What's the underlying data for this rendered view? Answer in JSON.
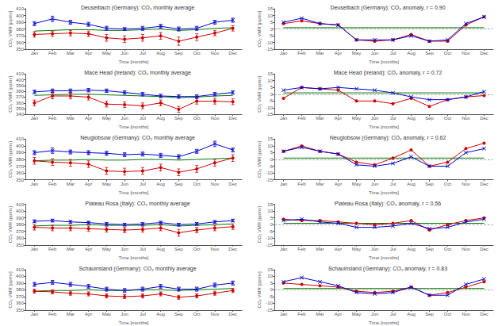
{
  "chart_data": [
    {
      "type": "line",
      "title": "Deuselbach (Germany): CO₂ monthly average",
      "x_label": "Time [months]",
      "y_label": "CO₂ VMR [ppmv]",
      "categories": [
        "Jan",
        "Feb",
        "Mar",
        "Apr",
        "May",
        "Jun",
        "Jul",
        "Aug",
        "Sep",
        "Oct",
        "Nov",
        "Dec"
      ],
      "ylim": [
        350,
        410
      ],
      "yticks": [
        350,
        360,
        370,
        380,
        390,
        400,
        410
      ],
      "grid": false,
      "series": [
        {
          "color": "#0000cc",
          "marker": "x",
          "values": [
            388,
            395,
            390,
            387,
            381,
            380,
            381,
            384,
            380,
            381,
            390,
            393
          ],
          "errors": [
            3,
            4,
            3,
            3,
            3,
            2,
            3,
            3,
            3,
            3,
            3,
            3
          ]
        },
        {
          "color": "#cc0000",
          "marker": "circle",
          "values": [
            372,
            373,
            374,
            373,
            367,
            365,
            367,
            370,
            362,
            368,
            374,
            381
          ],
          "errors": [
            4,
            4,
            4,
            4,
            5,
            5,
            5,
            5,
            6,
            5,
            4,
            4
          ]
        },
        {
          "color": "#007700",
          "marker": "none",
          "values": [
            377,
            378,
            379,
            379,
            378,
            378,
            379,
            380,
            378,
            379,
            381,
            382
          ]
        }
      ]
    },
    {
      "type": "line",
      "title": "Deuselbach (Germany): CO₂ anomaly, r = 0.90",
      "x_label": "Time [months]",
      "y_label": "CO₂ VMR [ppmv]",
      "categories": [
        "Jan",
        "Feb",
        "Mar",
        "Apr",
        "May",
        "Jun",
        "Jul",
        "Aug",
        "Sep",
        "Oct",
        "Nov",
        "Dec"
      ],
      "ylim": [
        -15,
        15
      ],
      "yticks": [
        -15,
        -10,
        -5,
        0,
        5,
        10,
        15
      ],
      "grid": false,
      "reference_line": {
        "value": 0,
        "color": "#999999",
        "line_style": "dashed"
      },
      "series": [
        {
          "color": "#0000cc",
          "marker": "x",
          "values": [
            5,
            8,
            4,
            3,
            -8,
            -8,
            -8,
            -5,
            -9,
            -8,
            4,
            9
          ]
        },
        {
          "color": "#cc0000",
          "marker": "circle",
          "values": [
            4,
            6,
            4,
            3,
            -8,
            -9,
            -8,
            -4,
            -9,
            -9,
            3,
            9
          ]
        },
        {
          "color": "#007700",
          "marker": "none",
          "values": [
            1,
            1,
            1,
            1,
            1,
            1,
            1,
            1,
            1,
            1,
            1,
            1
          ]
        }
      ]
    },
    {
      "type": "line",
      "title": "Mace Head (Ireland): CO₂ monthly average",
      "x_label": "Time [months]",
      "y_label": "CO₂ VMR [ppmv]",
      "categories": [
        "Jan",
        "Feb",
        "Mar",
        "Apr",
        "May",
        "Jun",
        "Jul",
        "Aug",
        "Sep",
        "Oct",
        "Nov",
        "Dec"
      ],
      "ylim": [
        340,
        410
      ],
      "yticks": [
        340,
        350,
        360,
        370,
        380,
        390,
        400,
        410
      ],
      "grid": false,
      "series": [
        {
          "color": "#0000cc",
          "marker": "x",
          "values": [
            379,
            381,
            381,
            382,
            381,
            378,
            375,
            372,
            371,
            371,
            375,
            378
          ],
          "errors": [
            3,
            3,
            3,
            3,
            3,
            3,
            3,
            3,
            3,
            3,
            3,
            3
          ]
        },
        {
          "color": "#cc0000",
          "marker": "circle",
          "values": [
            360,
            372,
            372,
            370,
            358,
            357,
            355,
            360,
            349,
            363,
            363,
            362
          ],
          "errors": [
            5,
            5,
            5,
            5,
            5,
            5,
            5,
            5,
            5,
            5,
            5,
            5
          ]
        },
        {
          "color": "#007700",
          "marker": "none",
          "values": [
            373,
            374,
            375,
            375,
            374,
            373,
            372,
            371,
            369,
            370,
            372,
            373
          ]
        }
      ]
    },
    {
      "type": "line",
      "title": "Mace Head (Ireland): CO₂ anomaly, r = 0.72",
      "x_label": "Time [months]",
      "y_label": "CO₂ VMR [ppmv]",
      "categories": [
        "Jan",
        "Feb",
        "Mar",
        "Apr",
        "May",
        "Jun",
        "Jul",
        "Aug",
        "Sep",
        "Oct",
        "Nov",
        "Dec"
      ],
      "ylim": [
        -15,
        15
      ],
      "yticks": [
        -15,
        -10,
        -5,
        0,
        5,
        10,
        15
      ],
      "grid": false,
      "reference_line": {
        "value": 0,
        "color": "#999999",
        "line_style": "dashed"
      },
      "series": [
        {
          "color": "#0000cc",
          "marker": "x",
          "values": [
            3,
            5,
            4,
            5,
            4,
            3,
            1,
            -2,
            -4,
            -4,
            -2,
            2
          ]
        },
        {
          "color": "#cc0000",
          "marker": "circle",
          "values": [
            -3,
            5,
            4,
            3,
            -5,
            -5,
            -7,
            -3,
            -9,
            -4,
            -2,
            -1
          ]
        },
        {
          "color": "#007700",
          "marker": "none",
          "values": [
            1,
            1,
            1,
            1,
            1,
            1,
            1,
            1,
            1,
            1,
            1,
            1
          ]
        }
      ]
    },
    {
      "type": "line",
      "title": "Neuglobsow (Germany): CO₂ monthly average",
      "x_label": "Time [months]",
      "y_label": "CO₂ VMR [ppmv]",
      "categories": [
        "Jan",
        "Feb",
        "Mar",
        "Apr",
        "May",
        "Jun",
        "Jul",
        "Aug",
        "Sep",
        "Oct",
        "Nov",
        "Dec"
      ],
      "ylim": [
        350,
        410
      ],
      "yticks": [
        350,
        360,
        370,
        380,
        390,
        400,
        410
      ],
      "grid": false,
      "series": [
        {
          "color": "#0000cc",
          "marker": "x",
          "values": [
            390,
            393,
            391,
            390,
            389,
            387,
            388,
            386,
            384,
            392,
            403,
            394
          ],
          "errors": [
            3,
            4,
            3,
            3,
            3,
            3,
            3,
            3,
            3,
            3,
            4,
            3
          ]
        },
        {
          "color": "#cc0000",
          "marker": "circle",
          "values": [
            378,
            376,
            375,
            373,
            363,
            362,
            363,
            368,
            361,
            366,
            375,
            382
          ],
          "errors": [
            5,
            5,
            5,
            5,
            5,
            5,
            5,
            5,
            5,
            5,
            5,
            5
          ]
        },
        {
          "color": "#007700",
          "marker": "none",
          "values": [
            378,
            379,
            379,
            380,
            379,
            379,
            380,
            380,
            379,
            380,
            381,
            382
          ]
        }
      ]
    },
    {
      "type": "line",
      "title": "Neuglobsow (Germany): CO₂ anomaly, r = 0.62",
      "x_label": "Time [months]",
      "y_label": "CO₂ VMR [ppmv]",
      "categories": [
        "Jan",
        "Feb",
        "Mar",
        "Apr",
        "May",
        "Jun",
        "Jul",
        "Aug",
        "Sep",
        "Oct",
        "Nov",
        "Dec"
      ],
      "ylim": [
        -15,
        15
      ],
      "yticks": [
        -15,
        -10,
        -5,
        0,
        5,
        10,
        15
      ],
      "grid": false,
      "reference_line": {
        "value": 0,
        "color": "#999999",
        "line_style": "dashed"
      },
      "series": [
        {
          "color": "#0000cc",
          "marker": "x",
          "values": [
            6,
            9,
            6,
            4,
            -4,
            -5,
            -3,
            2,
            -5,
            -5,
            5,
            8
          ]
        },
        {
          "color": "#cc0000",
          "marker": "circle",
          "values": [
            6,
            10,
            6,
            4,
            -2,
            -4,
            1,
            7,
            -5,
            -2,
            8,
            12
          ]
        },
        {
          "color": "#007700",
          "marker": "none",
          "values": [
            1,
            1,
            1,
            1,
            1,
            1,
            1,
            1,
            1,
            1,
            1,
            1
          ]
        }
      ]
    },
    {
      "type": "line",
      "title": "Plateau Rosa (Italy): CO₂ monthly average",
      "x_label": "Time [months]",
      "y_label": "CO₂ VMR [ppmv]",
      "categories": [
        "Jan",
        "Feb",
        "Mar",
        "Apr",
        "May",
        "Jun",
        "Jul",
        "Aug",
        "Sep",
        "Oct",
        "Nov",
        "Dec"
      ],
      "ylim": [
        350,
        410
      ],
      "yticks": [
        350,
        360,
        370,
        380,
        390,
        400,
        410
      ],
      "grid": false,
      "series": [
        {
          "color": "#0000cc",
          "marker": "x",
          "values": [
            385,
            386,
            384,
            383,
            381,
            380,
            381,
            383,
            380,
            381,
            384,
            386
          ],
          "errors": [
            2,
            2,
            2,
            2,
            2,
            2,
            2,
            2,
            2,
            2,
            2,
            2
          ]
        },
        {
          "color": "#cc0000",
          "marker": "circle",
          "values": [
            376,
            375,
            375,
            374,
            373,
            372,
            373,
            375,
            368,
            372,
            375,
            377
          ],
          "errors": [
            4,
            4,
            4,
            4,
            4,
            4,
            4,
            4,
            5,
            4,
            4,
            4
          ]
        },
        {
          "color": "#007700",
          "marker": "none",
          "values": [
            378,
            379,
            379,
            380,
            379,
            379,
            379,
            380,
            378,
            379,
            380,
            381
          ]
        }
      ]
    },
    {
      "type": "line",
      "title": "Plateau Rosa (Italy): CO₂ anomaly, r = 0.56",
      "x_label": "Time [months]",
      "y_label": "CO₂ VMR [ppmv]",
      "categories": [
        "Jan",
        "Feb",
        "Mar",
        "Apr",
        "May",
        "Jun",
        "Jul",
        "Aug",
        "Sep",
        "Oct",
        "Nov",
        "Dec"
      ],
      "ylim": [
        -15,
        15
      ],
      "yticks": [
        -15,
        -10,
        -5,
        0,
        5,
        10,
        15
      ],
      "grid": false,
      "reference_line": {
        "value": 0,
        "color": "#999999",
        "line_style": "dashed"
      },
      "series": [
        {
          "color": "#0000cc",
          "marker": "x",
          "values": [
            3,
            4,
            2,
            1,
            -2,
            -2,
            -1,
            1,
            -3,
            -2,
            2,
            4
          ]
        },
        {
          "color": "#cc0000",
          "marker": "circle",
          "values": [
            4,
            3,
            3,
            2,
            1,
            0,
            1,
            3,
            -4,
            0,
            3,
            5
          ]
        },
        {
          "color": "#007700",
          "marker": "none",
          "values": [
            1,
            1,
            1,
            1,
            1,
            1,
            1,
            1,
            1,
            1,
            1,
            1
          ]
        }
      ]
    },
    {
      "type": "line",
      "title": "Schauinsland (Germany): CO₂ monthly average",
      "x_label": "Time [months]",
      "y_label": "CO₂ VMR [ppmv]",
      "categories": [
        "Jan",
        "Feb",
        "Mar",
        "Apr",
        "May",
        "Jun",
        "Jul",
        "Aug",
        "Sep",
        "Oct",
        "Nov",
        "Dec"
      ],
      "ylim": [
        350,
        410
      ],
      "yticks": [
        350,
        360,
        370,
        380,
        390,
        400,
        410
      ],
      "grid": false,
      "series": [
        {
          "color": "#0000cc",
          "marker": "x",
          "values": [
            388,
            391,
            388,
            385,
            381,
            379,
            381,
            385,
            381,
            381,
            387,
            390
          ],
          "errors": [
            3,
            3,
            3,
            3,
            3,
            3,
            3,
            3,
            3,
            3,
            3,
            3
          ]
        },
        {
          "color": "#cc0000",
          "marker": "circle",
          "values": [
            378,
            377,
            375,
            374,
            371,
            370,
            371,
            374,
            369,
            371,
            375,
            379
          ],
          "errors": [
            3,
            3,
            3,
            3,
            3,
            3,
            3,
            3,
            3,
            3,
            3,
            3
          ]
        },
        {
          "color": "#007700",
          "marker": "none",
          "values": [
            378,
            379,
            379,
            380,
            379,
            379,
            380,
            380,
            379,
            380,
            381,
            382
          ]
        }
      ]
    },
    {
      "type": "line",
      "title": "Schauinsland (Germany): CO₂ anomaly, r = 0.83",
      "x_label": "Time [months]",
      "y_label": "CO₂ VMR [ppmv]",
      "categories": [
        "Jan",
        "Feb",
        "Mar",
        "Apr",
        "May",
        "Jun",
        "Jul",
        "Aug",
        "Sep",
        "Oct",
        "Nov",
        "Dec"
      ],
      "ylim": [
        -15,
        15
      ],
      "yticks": [
        -15,
        -10,
        -5,
        0,
        5,
        10,
        15
      ],
      "grid": false,
      "reference_line": {
        "value": 0,
        "color": "#999999",
        "line_style": "dashed"
      },
      "series": [
        {
          "color": "#0000cc",
          "marker": "x",
          "values": [
            6,
            9,
            6,
            3,
            -2,
            -3,
            -2,
            2,
            -4,
            -4,
            4,
            8
          ]
        },
        {
          "color": "#cc0000",
          "marker": "circle",
          "values": [
            5,
            4,
            3,
            2,
            -1,
            -2,
            -1,
            2,
            -4,
            -2,
            2,
            6
          ]
        },
        {
          "color": "#007700",
          "marker": "none",
          "values": [
            1,
            1,
            1,
            1,
            1,
            1,
            1,
            1,
            1,
            1,
            1,
            1
          ]
        }
      ]
    }
  ]
}
